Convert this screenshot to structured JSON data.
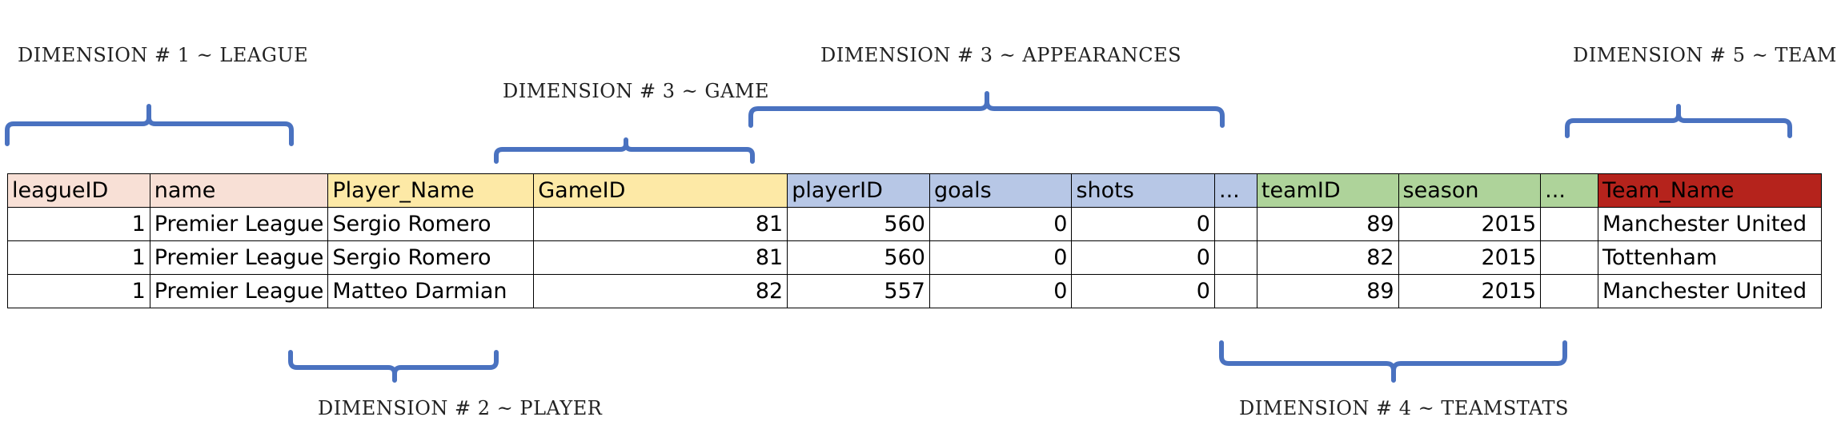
{
  "dimensions": {
    "league": "DIMENSION # 1 ~ LEAGUE",
    "player": "DIMENSION # 2 ~ PLAYER",
    "game": "DIMENSION # 3 ~ GAME",
    "appearances": "DIMENSION # 3 ~ APPEARANCES",
    "teamstats": "DIMENSION # 4 ~ TEAMSTATS",
    "team": "DIMENSION # 5 ~ TEAM"
  },
  "colors": {
    "league": "#f8e0d6",
    "player": "#fde9a6",
    "game": "#fde9a6",
    "appearances": "#b7c7e6",
    "teamstats": "#aed39a",
    "team": "#b5231c",
    "brace": "#4a72c0"
  },
  "table": {
    "headers": [
      "leagueID",
      "name",
      "Player_Name",
      "GameID",
      "playerID",
      "goals",
      "shots",
      "...",
      "teamID",
      "season",
      "...",
      "Team_Name"
    ],
    "rows": [
      [
        "1",
        "Premier League",
        "Sergio Romero",
        "81",
        "560",
        "0",
        "0",
        "",
        "89",
        "2015",
        "",
        "Manchester United"
      ],
      [
        "1",
        "Premier League",
        "Sergio Romero",
        "81",
        "560",
        "0",
        "0",
        "",
        "82",
        "2015",
        "",
        "Tottenham"
      ],
      [
        "1",
        "Premier League",
        "Matteo Darmian",
        "82",
        "557",
        "0",
        "0",
        "",
        "89",
        "2015",
        "",
        "Manchester United"
      ]
    ]
  }
}
